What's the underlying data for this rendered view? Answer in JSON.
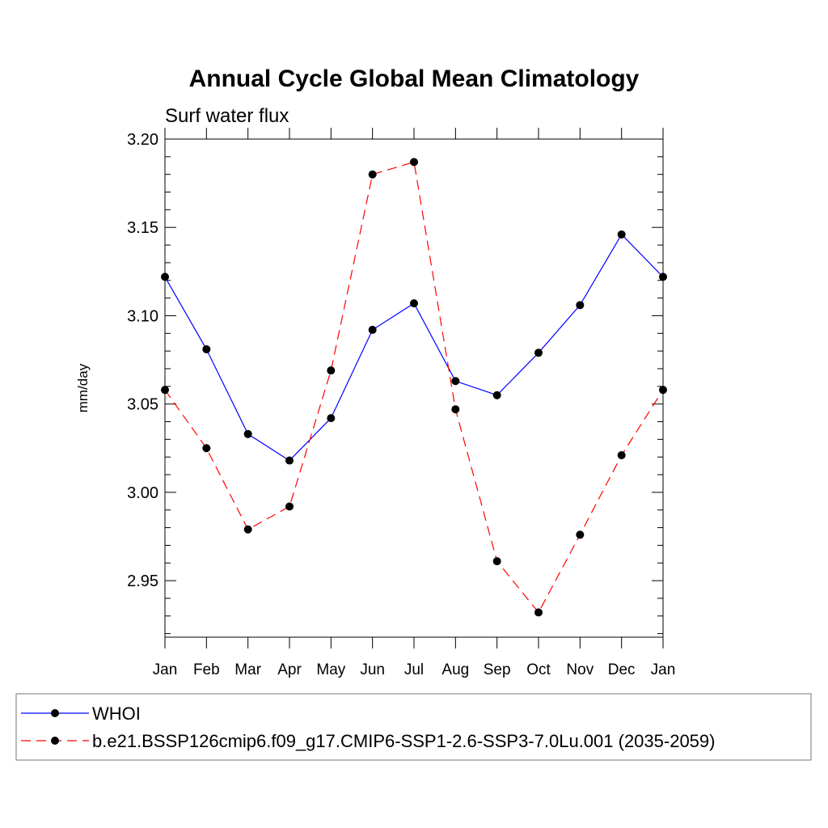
{
  "chart_data": {
    "type": "line",
    "title": "Annual Cycle Global Mean Climatology",
    "subtitle": "Surf water flux",
    "xlabel": "",
    "ylabel": "mm/day",
    "categories": [
      "Jan",
      "Feb",
      "Mar",
      "Apr",
      "May",
      "Jun",
      "Jul",
      "Aug",
      "Sep",
      "Oct",
      "Nov",
      "Dec",
      "Jan"
    ],
    "yticks": [
      "3.20",
      "3.15",
      "3.10",
      "3.05",
      "3.00",
      "2.95"
    ],
    "ytick_values": [
      3.2,
      3.15,
      3.1,
      3.05,
      3.0,
      2.95
    ],
    "ylim": [
      2.918,
      3.2
    ],
    "grid": false,
    "legend_position": "bottom",
    "series": [
      {
        "name": "WHOI",
        "color": "#0000ff",
        "dash": "solid",
        "marker": "circle",
        "values": [
          3.122,
          3.081,
          3.033,
          3.018,
          3.042,
          3.092,
          3.107,
          3.063,
          3.055,
          3.079,
          3.106,
          3.146,
          3.122
        ]
      },
      {
        "name": "b.e21.BSSP126cmip6.f09_g17.CMIP6-SSP1-2.6-SSP3-7.0Lu.001 (2035-2059)",
        "color": "#ff0000",
        "dash": "dashed",
        "marker": "circle",
        "values": [
          3.058,
          3.025,
          2.979,
          2.992,
          3.069,
          3.18,
          3.187,
          3.047,
          2.961,
          2.932,
          2.976,
          3.021,
          3.058
        ]
      }
    ]
  }
}
